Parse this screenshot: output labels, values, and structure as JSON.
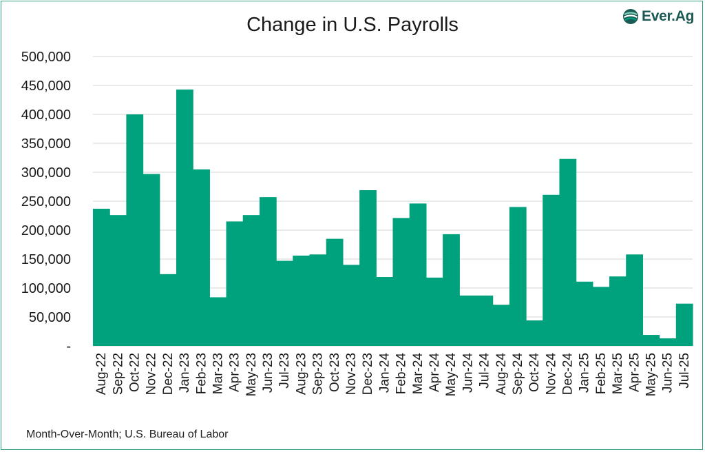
{
  "logo": {
    "text": "Ever.Ag",
    "icon": "globe-logo-icon",
    "color": "#1b5a55"
  },
  "footnote": "Month-Over-Month; U.S. Bureau of Labor",
  "colors": {
    "bar": "#00a17d",
    "grid": "#d6d6d6",
    "text": "#1a1a1a"
  },
  "chart_data": {
    "type": "bar",
    "title": "Change in U.S. Payrolls",
    "xlabel": "",
    "ylabel": "",
    "ylim": [
      0,
      500000
    ],
    "grid": true,
    "yticks": [
      0,
      50000,
      100000,
      150000,
      200000,
      250000,
      300000,
      350000,
      400000,
      450000,
      500000
    ],
    "ytick_labels": [
      "-",
      "50,000",
      "100,000",
      "150,000",
      "200,000",
      "250,000",
      "300,000",
      "350,000",
      "400,000",
      "450,000",
      "500,000"
    ],
    "categories": [
      "Aug-22",
      "Sep-22",
      "Oct-22",
      "Nov-22",
      "Dec-22",
      "Jan-23",
      "Feb-23",
      "Mar-23",
      "Apr-23",
      "May-23",
      "Jun-23",
      "Jul-23",
      "Aug-23",
      "Sep-23",
      "Oct-23",
      "Nov-23",
      "Dec-23",
      "Jan-24",
      "Feb-24",
      "Mar-24",
      "Apr-24",
      "May-24",
      "Jun-24",
      "Jul-24",
      "Aug-24",
      "Sep-24",
      "Oct-24",
      "Nov-24",
      "Dec-24",
      "Jan-25",
      "Feb-25",
      "Mar-25",
      "Apr-25",
      "May-25",
      "Jun-25",
      "Jul-25"
    ],
    "values": [
      237000,
      226000,
      400000,
      297000,
      124000,
      443000,
      305000,
      84000,
      215000,
      226000,
      257000,
      147000,
      156000,
      158000,
      185000,
      140000,
      269000,
      119000,
      221000,
      246000,
      118000,
      193000,
      87000,
      87000,
      71000,
      240000,
      44000,
      261000,
      323000,
      111000,
      102000,
      120000,
      158000,
      19000,
      13000,
      73000
    ]
  }
}
